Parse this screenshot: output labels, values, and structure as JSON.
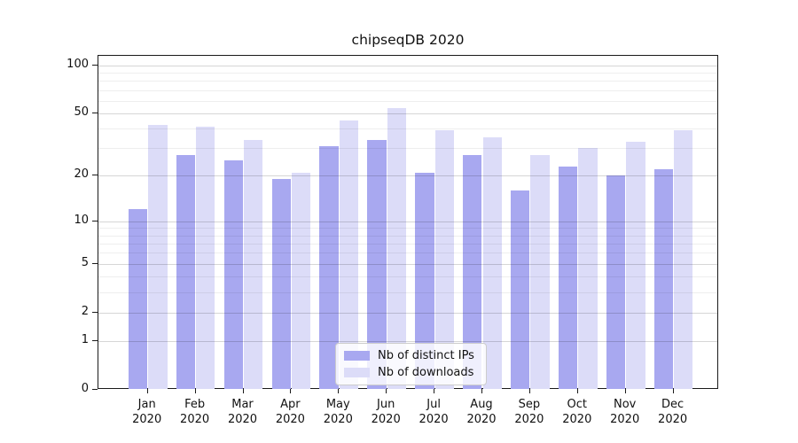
{
  "chart_data": {
    "type": "bar",
    "title": "chipseqDB 2020",
    "categories": [
      "Jan",
      "Feb",
      "Mar",
      "Apr",
      "May",
      "Jun",
      "Jul",
      "Aug",
      "Sep",
      "Oct",
      "Nov",
      "Dec"
    ],
    "category_year": "2020",
    "series": [
      {
        "name": "Nb of distinct IPs",
        "color": "#a8a8f0",
        "values": [
          12,
          27,
          25,
          19,
          31,
          34,
          21,
          27,
          16,
          23,
          20,
          22
        ]
      },
      {
        "name": "Nb of downloads",
        "color": "#dcdcf8",
        "values": [
          42,
          41,
          34,
          21,
          45,
          54,
          39,
          35,
          27,
          30,
          33,
          39
        ]
      }
    ],
    "xlabel": "",
    "ylabel": "",
    "yscale": "log1p",
    "yticks": [
      0,
      1,
      2,
      5,
      10,
      20,
      50,
      100
    ],
    "minor_yticks": [
      3,
      4,
      6,
      7,
      8,
      9,
      30,
      40,
      60,
      70,
      80,
      90
    ],
    "ylim": [
      0,
      115
    ],
    "grid": "horizontal, drawn over bars",
    "legend_position": "bottom-center"
  }
}
